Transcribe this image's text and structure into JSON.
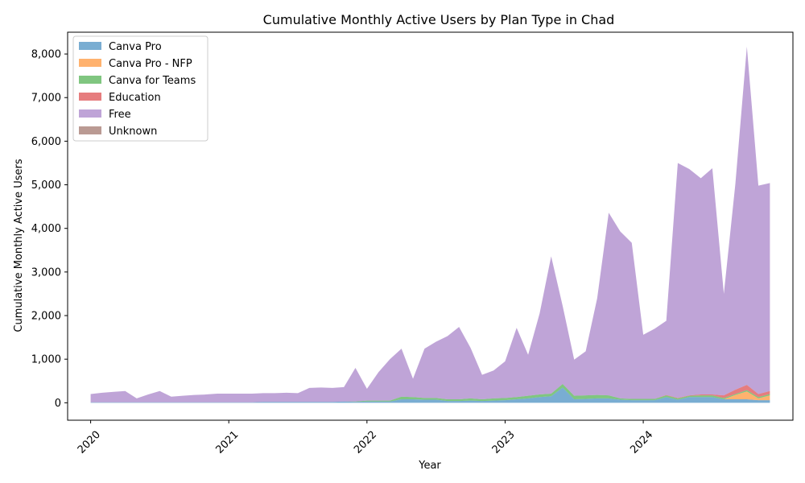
{
  "chart_data": {
    "type": "area",
    "stacked": true,
    "title": "Cumulative Monthly Active Users by Plan Type in Chad",
    "xlabel": "Year",
    "ylabel": "Cumulative Monthly Active Users",
    "x_ticks": [
      "2020",
      "2021",
      "2022",
      "2023",
      "2024"
    ],
    "y_ticks": [
      0,
      1000,
      2000,
      3000,
      4000,
      5000,
      6000,
      7000,
      8000
    ],
    "y_tick_labels": [
      "0",
      "1,000",
      "2,000",
      "3,000",
      "4,000",
      "5,000",
      "6,000",
      "7,000",
      "8,000"
    ],
    "ylim": [
      -400,
      8500
    ],
    "xlim": [
      "2019-11",
      "2025-02"
    ],
    "legend_position": "upper-left",
    "x": [
      "2020-01",
      "2020-02",
      "2020-03",
      "2020-04",
      "2020-05",
      "2020-06",
      "2020-07",
      "2020-08",
      "2020-09",
      "2020-10",
      "2020-11",
      "2020-12",
      "2021-01",
      "2021-02",
      "2021-03",
      "2021-04",
      "2021-05",
      "2021-06",
      "2021-07",
      "2021-08",
      "2021-09",
      "2021-10",
      "2021-11",
      "2021-12",
      "2022-01",
      "2022-02",
      "2022-03",
      "2022-04",
      "2022-05",
      "2022-06",
      "2022-07",
      "2022-08",
      "2022-09",
      "2022-10",
      "2022-11",
      "2022-12",
      "2023-01",
      "2023-02",
      "2023-03",
      "2023-04",
      "2023-05",
      "2023-06",
      "2023-07",
      "2023-08",
      "2023-09",
      "2023-10",
      "2023-11",
      "2023-12",
      "2024-01",
      "2024-02",
      "2024-03",
      "2024-04",
      "2024-05",
      "2024-06",
      "2024-07",
      "2024-08",
      "2024-09",
      "2024-10",
      "2024-11",
      "2024-12"
    ],
    "series": [
      {
        "name": "Canva Pro",
        "color": "#1f77b4",
        "values": [
          10,
          10,
          10,
          10,
          10,
          10,
          10,
          10,
          10,
          10,
          10,
          10,
          10,
          10,
          10,
          20,
          20,
          20,
          20,
          20,
          20,
          20,
          30,
          20,
          30,
          30,
          30,
          80,
          80,
          70,
          70,
          40,
          40,
          50,
          40,
          50,
          60,
          80,
          100,
          130,
          150,
          350,
          80,
          90,
          100,
          100,
          70,
          60,
          60,
          60,
          130,
          70,
          130,
          130,
          130,
          80,
          80,
          80,
          60,
          60
        ]
      },
      {
        "name": "Canva Pro - NFP",
        "color": "#ff7f0e",
        "values": [
          0,
          0,
          0,
          0,
          0,
          0,
          0,
          0,
          0,
          0,
          0,
          0,
          0,
          0,
          0,
          0,
          0,
          0,
          0,
          0,
          0,
          0,
          0,
          0,
          0,
          0,
          0,
          0,
          0,
          0,
          0,
          0,
          0,
          0,
          0,
          0,
          0,
          0,
          0,
          0,
          0,
          0,
          0,
          0,
          0,
          0,
          0,
          0,
          0,
          0,
          0,
          0,
          0,
          0,
          0,
          0,
          100,
          180,
          40,
          110
        ]
      },
      {
        "name": "Canva for Teams",
        "color": "#2ca02c",
        "values": [
          0,
          0,
          0,
          0,
          0,
          0,
          0,
          0,
          0,
          0,
          0,
          0,
          0,
          0,
          0,
          0,
          0,
          0,
          0,
          0,
          0,
          0,
          0,
          10,
          20,
          20,
          20,
          60,
          50,
          40,
          40,
          40,
          40,
          50,
          40,
          50,
          50,
          50,
          60,
          60,
          60,
          80,
          80,
          80,
          80,
          70,
          30,
          30,
          30,
          30,
          40,
          30,
          30,
          40,
          40,
          30,
          20,
          30,
          30,
          30
        ]
      },
      {
        "name": "Education",
        "color": "#d62728",
        "values": [
          0,
          0,
          0,
          0,
          0,
          0,
          0,
          0,
          0,
          0,
          0,
          0,
          0,
          0,
          0,
          0,
          0,
          0,
          0,
          0,
          0,
          0,
          0,
          0,
          0,
          0,
          0,
          0,
          0,
          0,
          0,
          0,
          0,
          0,
          0,
          0,
          0,
          0,
          0,
          0,
          0,
          0,
          0,
          0,
          0,
          0,
          0,
          0,
          0,
          0,
          10,
          10,
          10,
          20,
          20,
          60,
          100,
          120,
          70,
          70
        ]
      },
      {
        "name": "Free",
        "color": "#9467bd",
        "values": [
          190,
          220,
          240,
          260,
          90,
          180,
          260,
          130,
          150,
          170,
          180,
          200,
          200,
          200,
          200,
          200,
          200,
          210,
          200,
          320,
          330,
          320,
          330,
          770,
          270,
          650,
          950,
          1100,
          420,
          1130,
          1290,
          1450,
          1660,
          1160,
          560,
          640,
          840,
          1590,
          940,
          1860,
          3150,
          1790,
          830,
          1010,
          2220,
          4190,
          3830,
          3580,
          1470,
          1610,
          1700,
          5390,
          5190,
          4960,
          5190,
          2330,
          4720,
          7760,
          4780,
          4770
        ]
      },
      {
        "name": "Unknown",
        "color": "#8c564b",
        "values": [
          0,
          0,
          0,
          0,
          0,
          0,
          0,
          0,
          0,
          0,
          0,
          0,
          0,
          0,
          0,
          0,
          0,
          0,
          0,
          0,
          0,
          0,
          0,
          0,
          0,
          0,
          0,
          0,
          0,
          0,
          0,
          0,
          0,
          0,
          0,
          0,
          0,
          0,
          0,
          0,
          0,
          0,
          0,
          0,
          0,
          0,
          0,
          0,
          0,
          0,
          0,
          0,
          0,
          0,
          0,
          0,
          0,
          0,
          0,
          0
        ]
      }
    ]
  }
}
